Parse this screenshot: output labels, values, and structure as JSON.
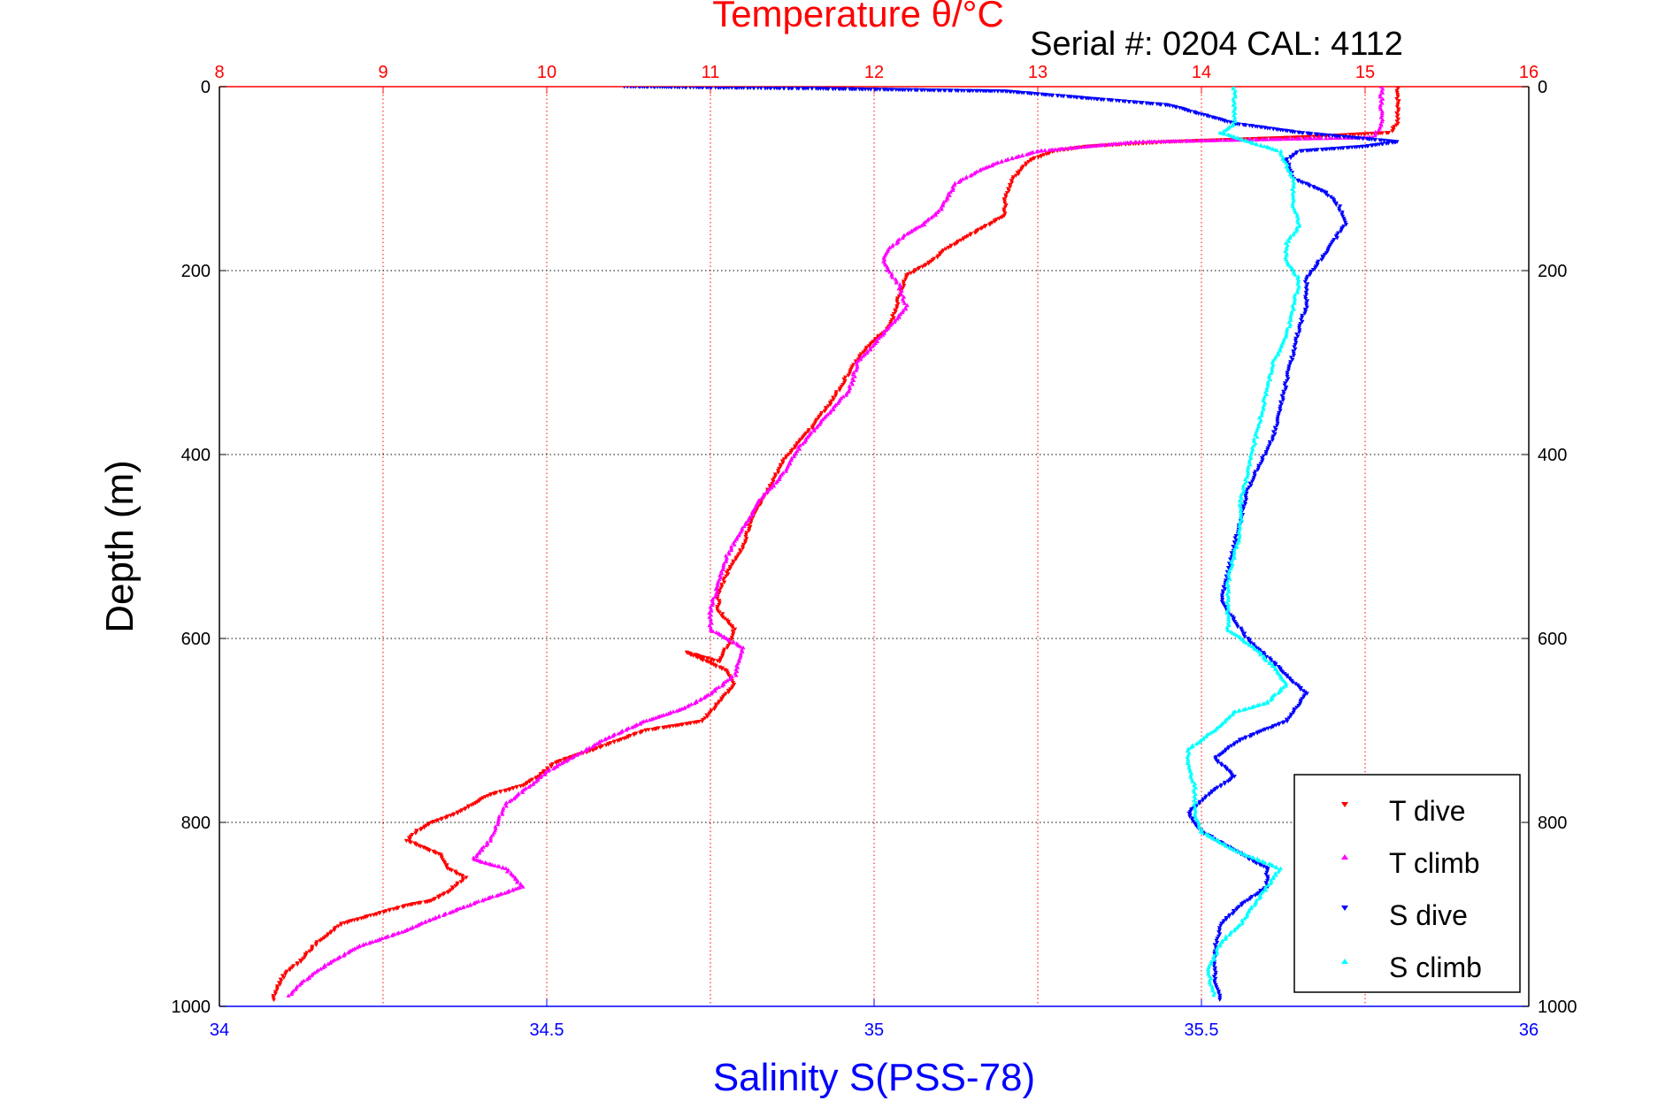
{
  "chart_data": {
    "type": "scatter",
    "title": "Temperature θ/°C",
    "subtitle": "Serial #: 0204  CAL: 4112",
    "xlabel": "Salinity S(PSS-78)",
    "ylabel": "Depth (m)",
    "x_top_label": "Temperature θ/°C",
    "x_top_range": [
      8,
      16
    ],
    "x_top_ticks": [
      "8",
      "9",
      "10",
      "11",
      "12",
      "13",
      "14",
      "15",
      "16"
    ],
    "x_bottom_range": [
      34,
      36
    ],
    "x_bottom_ticks": [
      "34",
      "34.5",
      "35",
      "35.5",
      "36"
    ],
    "y_range": [
      0,
      1000
    ],
    "y_reversed": true,
    "y_ticks": [
      "0",
      "200",
      "400",
      "600",
      "800",
      "1000"
    ],
    "grid": true,
    "legend_position": "bottom-right",
    "series": [
      {
        "name": "T dive",
        "axis": "top",
        "color": "#ff0000",
        "marker": "triangle-down",
        "points": [
          [
            15.2,
            0
          ],
          [
            15.2,
            20
          ],
          [
            15.2,
            40
          ],
          [
            15.15,
            50
          ],
          [
            14.6,
            55
          ],
          [
            13.8,
            60
          ],
          [
            13.3,
            65
          ],
          [
            13.1,
            70
          ],
          [
            12.95,
            80
          ],
          [
            12.85,
            100
          ],
          [
            12.8,
            120
          ],
          [
            12.8,
            140
          ],
          [
            12.6,
            160
          ],
          [
            12.45,
            175
          ],
          [
            12.35,
            190
          ],
          [
            12.2,
            205
          ],
          [
            12.15,
            230
          ],
          [
            12.1,
            260
          ],
          [
            11.95,
            285
          ],
          [
            11.85,
            310
          ],
          [
            11.75,
            340
          ],
          [
            11.6,
            375
          ],
          [
            11.45,
            405
          ],
          [
            11.35,
            440
          ],
          [
            11.25,
            470
          ],
          [
            11.2,
            500
          ],
          [
            11.1,
            530
          ],
          [
            11.05,
            550
          ],
          [
            11.05,
            570
          ],
          [
            11.15,
            590
          ],
          [
            11.1,
            610
          ],
          [
            11.05,
            625
          ],
          [
            10.85,
            615
          ],
          [
            11.1,
            635
          ],
          [
            11.15,
            650
          ],
          [
            11.05,
            670
          ],
          [
            10.95,
            690
          ],
          [
            10.6,
            700
          ],
          [
            10.3,
            720
          ],
          [
            10.05,
            735
          ],
          [
            9.95,
            750
          ],
          [
            9.85,
            760
          ],
          [
            9.65,
            770
          ],
          [
            9.45,
            790
          ],
          [
            9.3,
            800
          ],
          [
            9.2,
            810
          ],
          [
            9.15,
            820
          ],
          [
            9.35,
            835
          ],
          [
            9.4,
            850
          ],
          [
            9.5,
            860
          ],
          [
            9.4,
            875
          ],
          [
            9.3,
            885
          ],
          [
            9.15,
            890
          ],
          [
            8.95,
            900
          ],
          [
            8.75,
            910
          ],
          [
            8.6,
            930
          ],
          [
            8.5,
            950
          ],
          [
            8.4,
            965
          ],
          [
            8.35,
            980
          ],
          [
            8.32,
            995
          ]
        ]
      },
      {
        "name": "T climb",
        "axis": "top",
        "color": "#ff00ff",
        "marker": "triangle-up",
        "points": [
          [
            15.1,
            0
          ],
          [
            15.1,
            20
          ],
          [
            15.1,
            40
          ],
          [
            15.05,
            55
          ],
          [
            13.6,
            60
          ],
          [
            13.3,
            65
          ],
          [
            13.0,
            70
          ],
          [
            12.8,
            80
          ],
          [
            12.65,
            90
          ],
          [
            12.5,
            105
          ],
          [
            12.45,
            120
          ],
          [
            12.4,
            135
          ],
          [
            12.3,
            150
          ],
          [
            12.2,
            160
          ],
          [
            12.1,
            175
          ],
          [
            12.05,
            190
          ],
          [
            12.15,
            215
          ],
          [
            12.2,
            240
          ],
          [
            12.05,
            270
          ],
          [
            11.9,
            300
          ],
          [
            11.85,
            330
          ],
          [
            11.7,
            360
          ],
          [
            11.55,
            390
          ],
          [
            11.45,
            420
          ],
          [
            11.3,
            450
          ],
          [
            11.2,
            480
          ],
          [
            11.1,
            510
          ],
          [
            11.05,
            540
          ],
          [
            11.0,
            570
          ],
          [
            11.0,
            590
          ],
          [
            11.2,
            610
          ],
          [
            11.15,
            640
          ],
          [
            11.0,
            660
          ],
          [
            10.85,
            675
          ],
          [
            10.6,
            690
          ],
          [
            10.35,
            710
          ],
          [
            10.15,
            730
          ],
          [
            10.0,
            745
          ],
          [
            9.9,
            760
          ],
          [
            9.75,
            780
          ],
          [
            9.7,
            800
          ],
          [
            9.65,
            820
          ],
          [
            9.55,
            840
          ],
          [
            9.75,
            850
          ],
          [
            9.85,
            870
          ],
          [
            9.6,
            885
          ],
          [
            9.45,
            895
          ],
          [
            9.3,
            905
          ],
          [
            9.1,
            920
          ],
          [
            8.85,
            935
          ],
          [
            8.65,
            955
          ],
          [
            8.5,
            975
          ],
          [
            8.42,
            990
          ]
        ]
      },
      {
        "name": "S dive",
        "axis": "bottom",
        "color": "#0000ff",
        "marker": "triangle-down",
        "points": [
          [
            34.62,
            0
          ],
          [
            34.9,
            2
          ],
          [
            35.2,
            5
          ],
          [
            35.45,
            20
          ],
          [
            35.55,
            40
          ],
          [
            35.65,
            50
          ],
          [
            35.8,
            60
          ],
          [
            35.75,
            65
          ],
          [
            35.65,
            70
          ],
          [
            35.63,
            80
          ],
          [
            35.64,
            100
          ],
          [
            35.69,
            115
          ],
          [
            35.71,
            130
          ],
          [
            35.72,
            150
          ],
          [
            35.7,
            170
          ],
          [
            35.68,
            190
          ],
          [
            35.66,
            210
          ],
          [
            35.66,
            240
          ],
          [
            35.65,
            260
          ],
          [
            35.64,
            290
          ],
          [
            35.63,
            320
          ],
          [
            35.62,
            350
          ],
          [
            35.61,
            380
          ],
          [
            35.59,
            410
          ],
          [
            35.57,
            440
          ],
          [
            35.56,
            470
          ],
          [
            35.55,
            500
          ],
          [
            35.54,
            530
          ],
          [
            35.53,
            560
          ],
          [
            35.55,
            580
          ],
          [
            35.57,
            600
          ],
          [
            35.6,
            620
          ],
          [
            35.63,
            640
          ],
          [
            35.66,
            660
          ],
          [
            35.63,
            690
          ],
          [
            35.56,
            710
          ],
          [
            35.52,
            730
          ],
          [
            35.55,
            750
          ],
          [
            35.51,
            770
          ],
          [
            35.48,
            790
          ],
          [
            35.5,
            810
          ],
          [
            35.55,
            830
          ],
          [
            35.6,
            850
          ],
          [
            35.6,
            870
          ],
          [
            35.56,
            890
          ],
          [
            35.53,
            910
          ],
          [
            35.52,
            940
          ],
          [
            35.52,
            970
          ],
          [
            35.53,
            995
          ]
        ]
      },
      {
        "name": "S climb",
        "axis": "bottom",
        "color": "#00ffff",
        "marker": "triangle-up",
        "points": [
          [
            35.55,
            0
          ],
          [
            35.55,
            20
          ],
          [
            35.55,
            40
          ],
          [
            35.53,
            50
          ],
          [
            35.55,
            55
          ],
          [
            35.62,
            70
          ],
          [
            35.64,
            100
          ],
          [
            35.64,
            130
          ],
          [
            35.65,
            150
          ],
          [
            35.63,
            170
          ],
          [
            35.63,
            190
          ],
          [
            35.65,
            210
          ],
          [
            35.64,
            240
          ],
          [
            35.63,
            270
          ],
          [
            35.61,
            300
          ],
          [
            35.6,
            330
          ],
          [
            35.59,
            360
          ],
          [
            35.58,
            390
          ],
          [
            35.57,
            420
          ],
          [
            35.56,
            450
          ],
          [
            35.56,
            480
          ],
          [
            35.55,
            510
          ],
          [
            35.54,
            540
          ],
          [
            35.54,
            570
          ],
          [
            35.54,
            590
          ],
          [
            35.58,
            610
          ],
          [
            35.61,
            630
          ],
          [
            35.63,
            650
          ],
          [
            35.6,
            670
          ],
          [
            35.55,
            680
          ],
          [
            35.52,
            700
          ],
          [
            35.48,
            720
          ],
          [
            35.48,
            740
          ],
          [
            35.49,
            760
          ],
          [
            35.49,
            790
          ],
          [
            35.5,
            810
          ],
          [
            35.55,
            830
          ],
          [
            35.62,
            850
          ],
          [
            35.6,
            870
          ],
          [
            35.58,
            890
          ],
          [
            35.56,
            910
          ],
          [
            35.53,
            930
          ],
          [
            35.51,
            960
          ],
          [
            35.52,
            990
          ]
        ]
      }
    ]
  }
}
